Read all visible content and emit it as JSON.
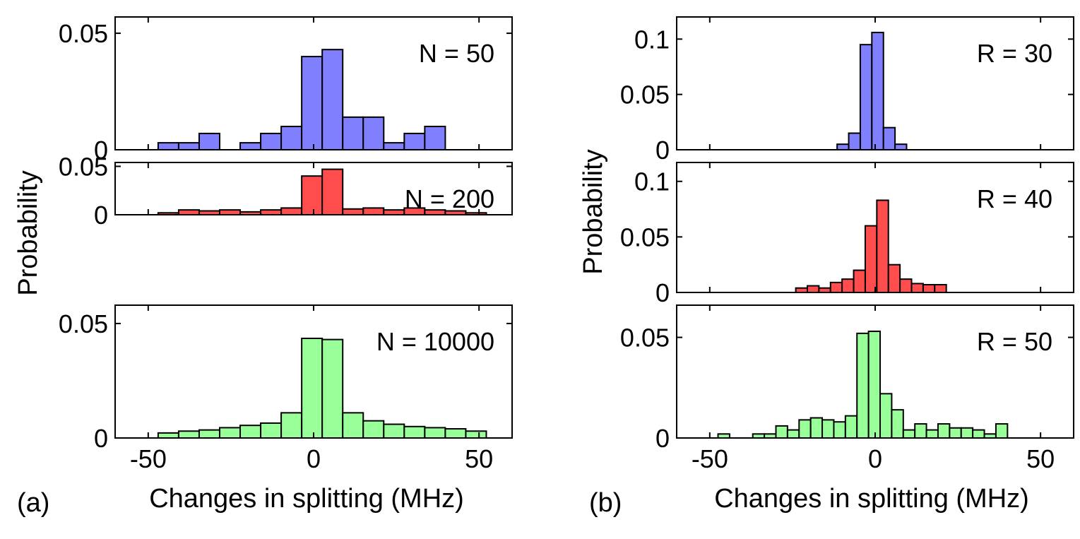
{
  "figure": {
    "panel_labels": [
      "(a)",
      "(b)"
    ],
    "colors": {
      "blue": "#8080ff",
      "red": "#ff4c4c",
      "green": "#99ff99",
      "edge": "#000000"
    }
  },
  "chart_data": [
    {
      "type": "bar",
      "group": "a",
      "xlabel": "Changes in splitting (MHz)",
      "ylabel": "Probability",
      "xlim": [
        -60,
        60
      ],
      "xticks": [
        -50,
        0,
        50
      ],
      "xtick_labels": [
        "-50",
        "0",
        "50"
      ],
      "subplots": [
        {
          "annotation": "N = 50",
          "color": "#8080ff",
          "ylim": [
            0,
            0.057
          ],
          "yticks": [
            0,
            0.05
          ],
          "ytick_labels": [
            "0",
            "0.05"
          ],
          "bin_left": -47,
          "bin_width": 6.2,
          "values": [
            0.003,
            0.003,
            0.007,
            0.0,
            0.003,
            0.007,
            0.01,
            0.04,
            0.043,
            0.014,
            0.014,
            0.003,
            0.007,
            0.01
          ]
        },
        {
          "annotation": "N = 200",
          "color": "#ff4c4c",
          "ylim": [
            0,
            0.054
          ],
          "yticks": [
            0,
            0.05
          ],
          "ytick_labels": [
            "0",
            "0.05"
          ],
          "bin_left": -47,
          "bin_width": 6.2,
          "values": [
            0.002,
            0.005,
            0.004,
            0.005,
            0.003,
            0.005,
            0.007,
            0.04,
            0.047,
            0.006,
            0.007,
            0.005,
            0.007,
            0.005,
            0.004,
            0.002
          ]
        },
        {
          "annotation": "N = 10000",
          "color": "#99ff99",
          "ylim": [
            0,
            0.058
          ],
          "yticks": [
            0,
            0.05
          ],
          "ytick_labels": [
            "0",
            "0.05"
          ],
          "bin_left": -47,
          "bin_width": 6.2,
          "values": [
            0.0022,
            0.003,
            0.0035,
            0.0045,
            0.0055,
            0.0065,
            0.011,
            0.0435,
            0.043,
            0.011,
            0.0075,
            0.006,
            0.005,
            0.0045,
            0.004,
            0.003
          ]
        }
      ]
    },
    {
      "type": "bar",
      "group": "b",
      "xlabel": "Changes in splitting (MHz)",
      "ylabel": "Probability",
      "xlim": [
        -60,
        60
      ],
      "xticks": [
        -50,
        0,
        50
      ],
      "xtick_labels": [
        "-50",
        "0",
        "50"
      ],
      "subplots": [
        {
          "annotation": "R = 30",
          "color": "#8080ff",
          "ylim": [
            0,
            0.12
          ],
          "yticks": [
            0,
            0.05,
            0.1
          ],
          "ytick_labels": [
            "0",
            "0.05",
            "0.1"
          ],
          "bin_left": -11.5,
          "bin_width": 3.5,
          "values": [
            0.005,
            0.015,
            0.095,
            0.106,
            0.02,
            0.005
          ]
        },
        {
          "annotation": "R = 40",
          "color": "#ff4c4c",
          "ylim": [
            0,
            0.117
          ],
          "yticks": [
            0,
            0.05,
            0.1
          ],
          "ytick_labels": [
            "0",
            "0.05",
            "0.1"
          ],
          "bin_left": -24,
          "bin_width": 3.5,
          "values": [
            0.004,
            0.006,
            0.004,
            0.009,
            0.012,
            0.02,
            0.06,
            0.083,
            0.025,
            0.012,
            0.008,
            0.007,
            0.007
          ]
        },
        {
          "annotation": "R = 50",
          "color": "#99ff99",
          "ylim": [
            0,
            0.066
          ],
          "yticks": [
            0,
            0.05
          ],
          "ytick_labels": [
            "0",
            "0.05"
          ],
          "bin_left": -47.5,
          "bin_width": 3.5,
          "values": [
            0.002,
            0.0,
            0.0,
            0.002,
            0.002,
            0.006,
            0.004,
            0.009,
            0.01,
            0.009,
            0.008,
            0.011,
            0.052,
            0.053,
            0.022,
            0.014,
            0.004,
            0.007,
            0.004,
            0.007,
            0.005,
            0.005,
            0.004,
            0.002,
            0.007
          ]
        }
      ]
    }
  ]
}
